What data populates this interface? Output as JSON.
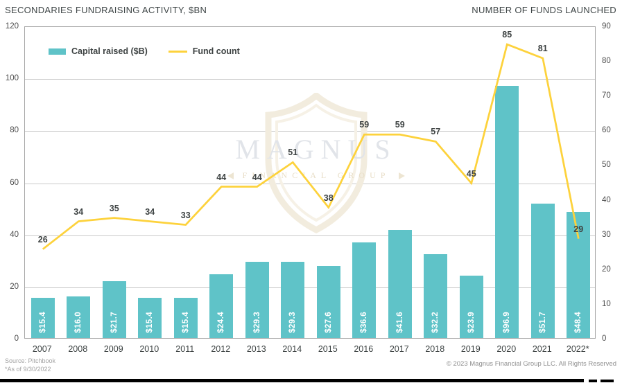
{
  "header": {
    "title_left": "SECONDARIES FUNDRAISING ACTIVITY, $BN",
    "title_right": "NUMBER OF FUNDS LAUNCHED"
  },
  "legend": {
    "bar_label": "Capital raised ($B)",
    "line_label": "Fund count"
  },
  "watermark": {
    "name": "MAGNUS",
    "subtitle": "FINANCIAL GROUP"
  },
  "footer": {
    "source": "Source: Pitchbook",
    "as_of": "*As of 9/30/2022",
    "copyright": "© 2023 Magnus Financial Group LLC. All Rights Reserved"
  },
  "colors": {
    "bar": "#5FC3C8",
    "line": "#FDD23C",
    "grid": "#C9C9C9",
    "plot_border": "#A6A6A6",
    "data_label": "#3E4343"
  },
  "chart_data": {
    "type": "bar",
    "subtype": "combo dual-axis: bars on left axis, line on right axis",
    "title": "SECONDARIES FUNDRAISING ACTIVITY, $BN",
    "categories": [
      "2007",
      "2008",
      "2009",
      "2010",
      "2011",
      "2012",
      "2013",
      "2014",
      "2015",
      "2016",
      "2017",
      "2018",
      "2019",
      "2020",
      "2021",
      "2022*"
    ],
    "series": [
      {
        "name": "Capital raised ($B)",
        "type": "bar",
        "axis": "left",
        "color": "#5FC3C8",
        "values": [
          15.4,
          16.0,
          21.7,
          15.4,
          15.4,
          24.4,
          29.3,
          29.3,
          27.6,
          36.6,
          41.6,
          32.2,
          23.9,
          96.9,
          51.7,
          48.4
        ],
        "value_labels": [
          "$15.4",
          "$16.0",
          "$21.7",
          "$15.4",
          "$15.4",
          "$24.4",
          "$29.3",
          "$29.3",
          "$27.6",
          "$36.6",
          "$41.6",
          "$32.2",
          "$23.9",
          "$96.9",
          "$51.7",
          "$48.4"
        ]
      },
      {
        "name": "Fund count",
        "type": "line",
        "axis": "right",
        "color": "#FDD23C",
        "values": [
          26,
          34,
          35,
          34,
          33,
          44,
          44,
          51,
          38,
          59,
          59,
          57,
          45,
          85,
          81,
          29
        ]
      }
    ],
    "left_axis": {
      "label": "SECONDARIES FUNDRAISING ACTIVITY, $BN",
      "min": 0,
      "max": 120,
      "ticks": [
        0,
        20,
        40,
        60,
        80,
        100,
        120
      ]
    },
    "right_axis": {
      "label": "NUMBER OF FUNDS LAUNCHED",
      "min": 0,
      "max": 90,
      "ticks": [
        0,
        10,
        20,
        30,
        40,
        50,
        60,
        70,
        80,
        90
      ]
    },
    "grid": "horizontal gridlines at left-axis ticks",
    "legend_position": "top-left inside plot area"
  }
}
